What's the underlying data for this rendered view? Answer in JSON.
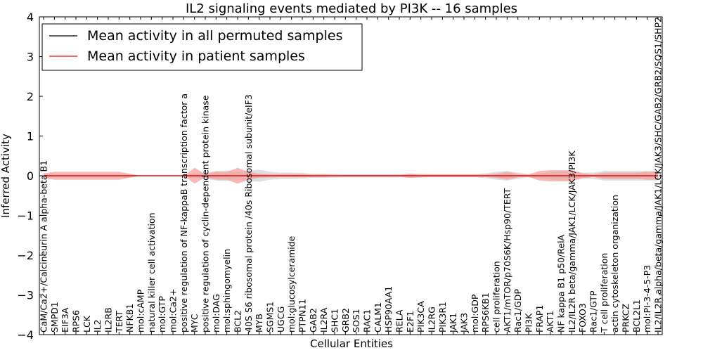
{
  "chart_data": {
    "type": "line",
    "title": "IL2 signaling events mediated by PI3K -- 16 samples",
    "xlabel": "Cellular Entities",
    "ylabel": "Inferred Activity",
    "ylim": [
      -4,
      4
    ],
    "yticks": [
      "−4",
      "−3",
      "−2",
      "−1",
      "0",
      "1",
      "2",
      "3",
      "4"
    ],
    "legend": {
      "position": "top-left",
      "entries": [
        {
          "label": "Mean activity in all permuted samples",
          "color": "#000000"
        },
        {
          "label": "Mean activity in patient samples",
          "color": "#ff0000"
        }
      ]
    },
    "categories": [
      "CaM/Ca2+/Calcineurin A alpha-beta B1",
      "SMPD1",
      "EIF3A",
      "RPS6",
      "LCK",
      "IL2",
      "IL2RB",
      "TERT",
      "NFKB1",
      "mol:cAMP",
      "natural killer cell activation",
      "mol:GTP",
      "mol:Ca2+",
      "positive regulation of NF-kappaB transcription factor a",
      "MYC",
      "positive regulation of cyclin-dependent protein kinase",
      "mol:DAG",
      "mol:sphingomyelin",
      "BCL2",
      "40S S6 ribosomal protein /40s Ribosomal subunit/eIF3",
      "MYB",
      "SGMS1",
      "UGCG",
      "mol:glucosylceramide",
      "PTPN11",
      "GAB2",
      "IL2RA",
      "SHC1",
      "GRB2",
      "SOS1",
      "RAC1",
      "CALM1",
      "HSP90AA1",
      "RELA",
      "E2F1",
      "PIK3CA",
      "IL2RG",
      "PIK3R1",
      "JAK1",
      "JAK3",
      "mol:GDP",
      "RPS6KB1",
      "cell proliferation",
      "AKT1/mTOR/p70S6K/Hsp90/TERT",
      "Rac1/GDP",
      "PI3K",
      "FRAP1",
      "AKT1",
      "NF kappa B1 p50/RelA",
      "IL2/IL2R beta/gamma/JAK1/LCK/JAK3/PI3K",
      "FOXO3",
      "Rac1/GTP",
      "T cell proliferation",
      "actin cytoskeleton organization",
      "PRKCZ",
      "BCL2L1",
      "mol:PI-3-4-5-P3",
      "IL2/IL2R alpha/beta/gamma/JAK1/LCK/JAK3/SHC/GAB2/GRB2/SOS1/SHP2"
    ],
    "series": [
      {
        "name": "Mean activity in all permuted samples",
        "color": "#000000",
        "band_color": "#c8c8c8",
        "values": [
          0,
          0,
          0,
          0,
          0,
          0,
          0,
          0,
          0,
          0,
          0,
          0,
          0,
          0,
          0,
          0,
          0,
          0,
          0,
          0,
          0,
          0,
          0,
          0,
          0,
          0,
          0,
          0,
          0,
          0,
          0,
          0,
          0,
          0,
          0,
          0,
          0,
          0,
          0,
          0,
          0,
          0,
          0,
          0,
          0,
          0,
          0,
          0,
          0,
          0,
          0,
          0,
          0,
          0,
          0,
          0,
          0,
          0
        ],
        "spread": [
          0.02,
          0.02,
          0.02,
          0.02,
          0.02,
          0.02,
          0.02,
          0.02,
          0.02,
          0.01,
          0,
          0,
          0,
          0,
          0.06,
          0.08,
          0.12,
          0.13,
          0.1,
          0.13,
          0.15,
          0.1,
          0.08,
          0.08,
          0.07,
          0.05,
          0.05,
          0.05,
          0.04,
          0.04,
          0.04,
          0.04,
          0.04,
          0.04,
          0.05,
          0.05,
          0.04,
          0.04,
          0.04,
          0.04,
          0.04,
          0.06,
          0.1,
          0.12,
          0.08,
          0.04,
          0.05,
          0.1,
          0.12,
          0.1,
          0.08,
          0.08,
          0.12,
          0.12,
          0.12,
          0.12,
          0.12,
          0.12
        ]
      },
      {
        "name": "Mean activity in patient samples",
        "color": "#ff0000",
        "band_color": "#f4a0a0",
        "values": [
          0,
          0,
          0,
          0,
          0,
          0,
          0,
          0,
          0,
          0,
          0,
          0,
          0,
          0,
          0,
          0,
          0,
          0,
          0,
          0,
          0,
          0,
          0,
          0,
          0,
          0,
          0,
          0,
          0,
          0,
          0,
          0,
          0,
          0,
          0,
          0,
          0,
          0,
          0,
          0,
          0,
          0,
          0,
          0,
          0,
          0,
          0,
          0,
          0,
          0,
          0,
          0,
          0,
          0,
          0,
          0,
          0,
          0
        ],
        "spread": [
          0.06,
          0.1,
          0.1,
          0.1,
          0.1,
          0.1,
          0.1,
          0.1,
          0.05,
          0,
          0,
          0,
          0,
          0,
          0.2,
          0.04,
          0.1,
          0.1,
          0.2,
          0.1,
          0.05,
          0.04,
          0.04,
          0.04,
          0.04,
          0.03,
          0.03,
          0.02,
          0.02,
          0.02,
          0.02,
          0.02,
          0.02,
          0.02,
          0.05,
          0.03,
          0.03,
          0.03,
          0.03,
          0.03,
          0.03,
          0.03,
          0.05,
          0.1,
          0.04,
          0.03,
          0.12,
          0.14,
          0.14,
          0.14,
          0.06,
          0.03,
          0.08,
          0.08,
          0.08,
          0.08,
          0.1,
          0.1
        ]
      }
    ]
  }
}
